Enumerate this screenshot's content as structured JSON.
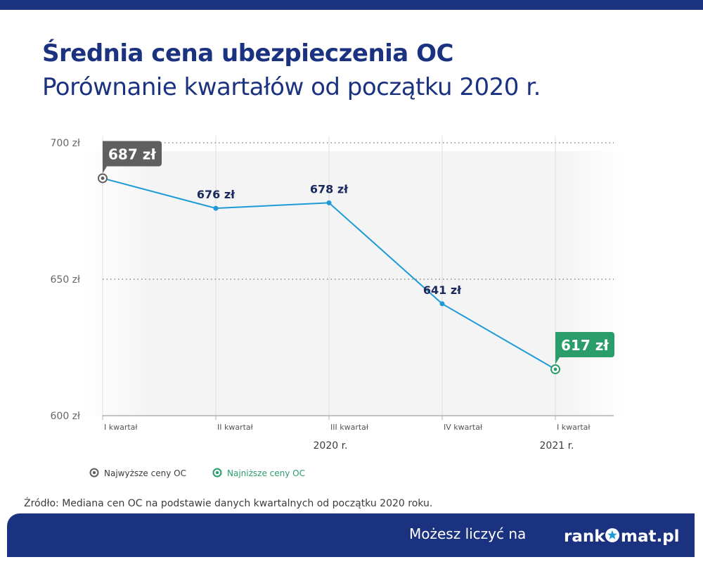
{
  "header": {
    "title": "Średnia cena ubezpieczenia OC",
    "subtitle": "Porównanie kwartałów od początku 2020 r."
  },
  "chart_data": {
    "type": "line",
    "title": "Średnia cena ubezpieczenia OC",
    "subtitle": "Porównanie kwartałów od początku 2020 r.",
    "categories": [
      "I kwartał",
      "II kwartał",
      "III kwartał",
      "IV kwartał",
      "I kwartał"
    ],
    "year_labels": [
      {
        "text": "2020 r.",
        "category_index": 2
      },
      {
        "text": "2021 r.",
        "category_index": 4
      }
    ],
    "values": [
      687,
      676,
      678,
      641,
      617
    ],
    "value_labels": [
      "687 zł",
      "676 zł",
      "678 zł",
      "641 zł",
      "617 zł"
    ],
    "yticks": [
      700,
      650,
      600
    ],
    "ytick_labels": [
      "700 zł",
      "650 zł",
      "600 zł"
    ],
    "ylim": [
      600,
      700
    ],
    "highest_index": 0,
    "lowest_index": 4,
    "grid": "vertical lines per category, dotted horizontal lines at 700 and 650",
    "legend": [
      {
        "label": "Najwyższe ceny OC",
        "kind": "highest"
      },
      {
        "label": "Najniższe ceny OC",
        "kind": "lowest"
      }
    ],
    "legend_position": "bottom-left",
    "colors": {
      "line": "#1e9bd7",
      "highest": "#5f5f5f",
      "lowest": "#2a9d6b",
      "text_dark": "#1b2a5c",
      "axis": "#b0b0b0"
    }
  },
  "source_text": "Źródło: Mediana cen OC na podstawie danych kwartalnych od początku 2020 roku.",
  "footer": {
    "tagline": "Możesz liczyć na",
    "brand_before": "rank",
    "brand_after": "mat.pl",
    "brand_icon": "star-in-circle-icon"
  }
}
